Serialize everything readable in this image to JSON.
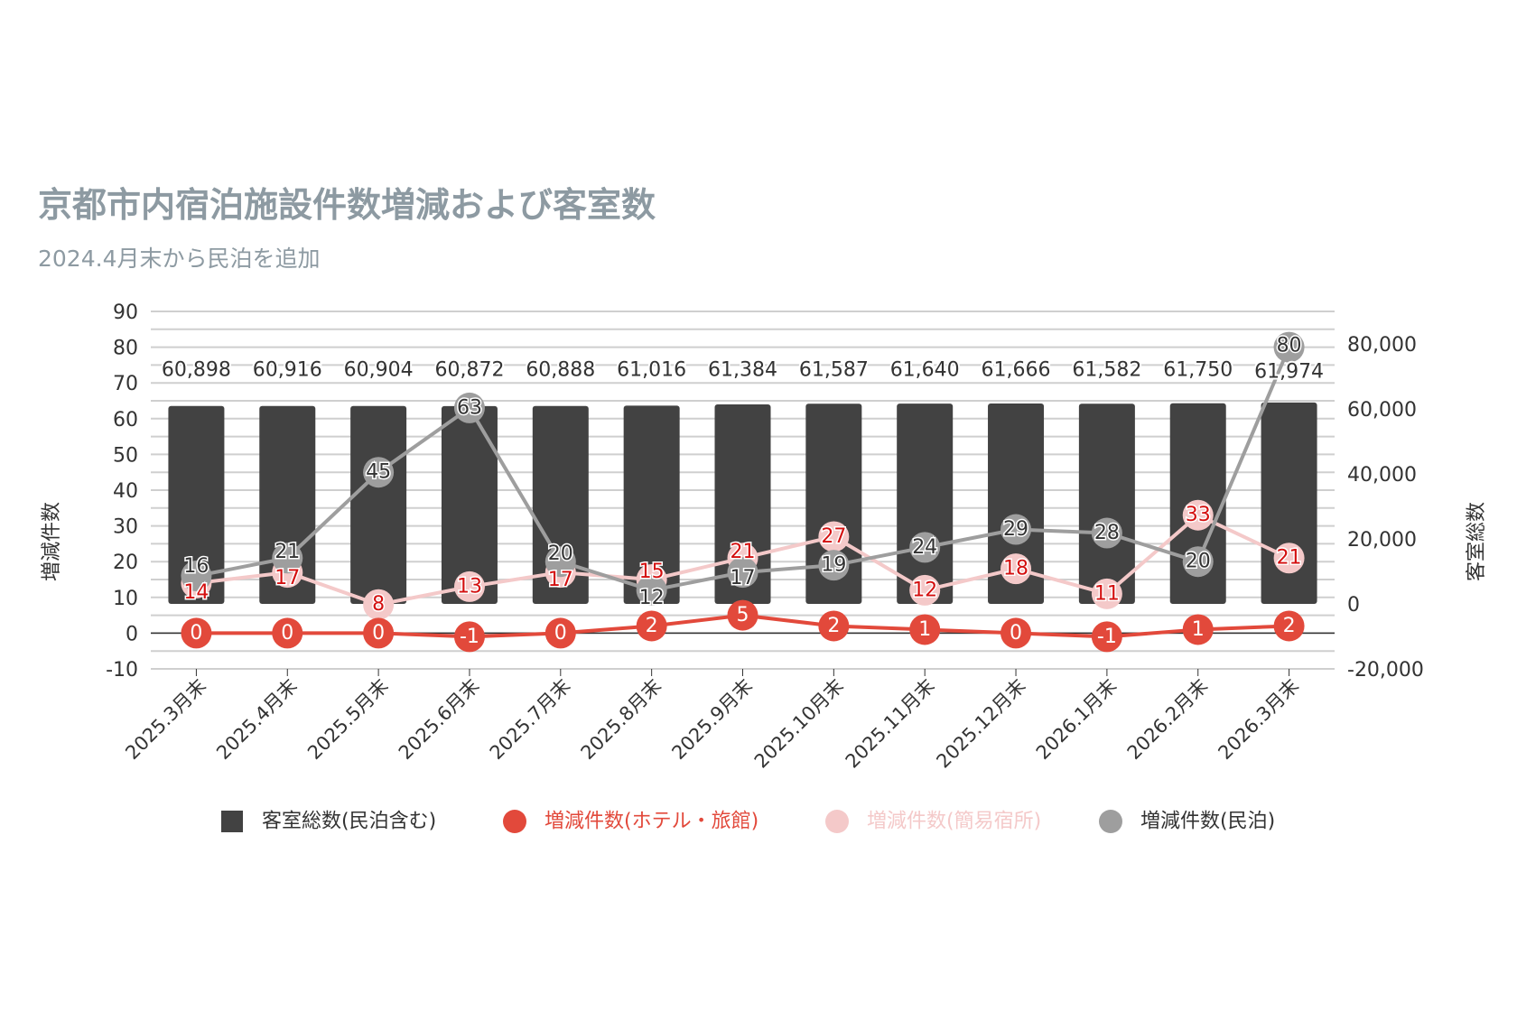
{
  "chart_data": {
    "type": "bar+line",
    "title": "京都市内宿泊施設件数増減および客室数",
    "subtitle": "2024.4月末から民泊を追加",
    "ylabel_left": "増減件数",
    "ylabel_right": "客室総数",
    "ylim_left": [
      -10,
      90
    ],
    "ylim_right": [
      -20000,
      90000
    ],
    "yticks_left": [
      90,
      80,
      70,
      60,
      50,
      40,
      30,
      20,
      10,
      0,
      -10
    ],
    "yticks_right": [
      80000,
      60000,
      40000,
      20000,
      0,
      -20000
    ],
    "yticks_right_labels": [
      "80,000",
      "60,000",
      "40,000",
      "20,000",
      "0",
      "-20,000"
    ],
    "grid": true,
    "legend_position": "bottom",
    "categories": [
      "2025.3月末",
      "2025.4月末",
      "2025.5月末",
      "2025.6月末",
      "2025.7月末",
      "2025.8月末",
      "2025.9月末",
      "2025.10月末",
      "2025.11月末",
      "2025.12月末",
      "2026.1月末",
      "2026.2月末",
      "2026.3月末"
    ],
    "series": [
      {
        "name": "客室総数(民泊含む)",
        "type": "bar",
        "axis": "right",
        "color": "#424242",
        "values": [
          60898,
          60916,
          60904,
          60872,
          60888,
          61016,
          61384,
          61587,
          61640,
          61666,
          61582,
          61750,
          61974
        ],
        "labels": [
          "60,898",
          "60,916",
          "60,904",
          "60,872",
          "60,888",
          "61,016",
          "61,384",
          "61,587",
          "61,640",
          "61,666",
          "61,582",
          "61,750",
          "61,974"
        ]
      },
      {
        "name": "増減件数(ホテル・旅館)",
        "type": "line",
        "axis": "left",
        "color": "#e2493b",
        "label_color": "#ffffff",
        "values": [
          0,
          0,
          0,
          -1,
          0,
          2,
          5,
          2,
          1,
          0,
          -1,
          1,
          2
        ]
      },
      {
        "name": "増減件数(簡易宿所)",
        "type": "line",
        "axis": "left",
        "color": "#f4c9c9",
        "label_color": "#d40f0f",
        "values": [
          14,
          17,
          8,
          13,
          17,
          15,
          21,
          27,
          12,
          18,
          11,
          33,
          21
        ]
      },
      {
        "name": "増減件数(民泊)",
        "type": "line",
        "axis": "left",
        "color": "#9e9e9e",
        "label_color": "#333333",
        "values": [
          16,
          21,
          45,
          63,
          20,
          12,
          17,
          19,
          24,
          29,
          28,
          20,
          80
        ]
      }
    ]
  }
}
